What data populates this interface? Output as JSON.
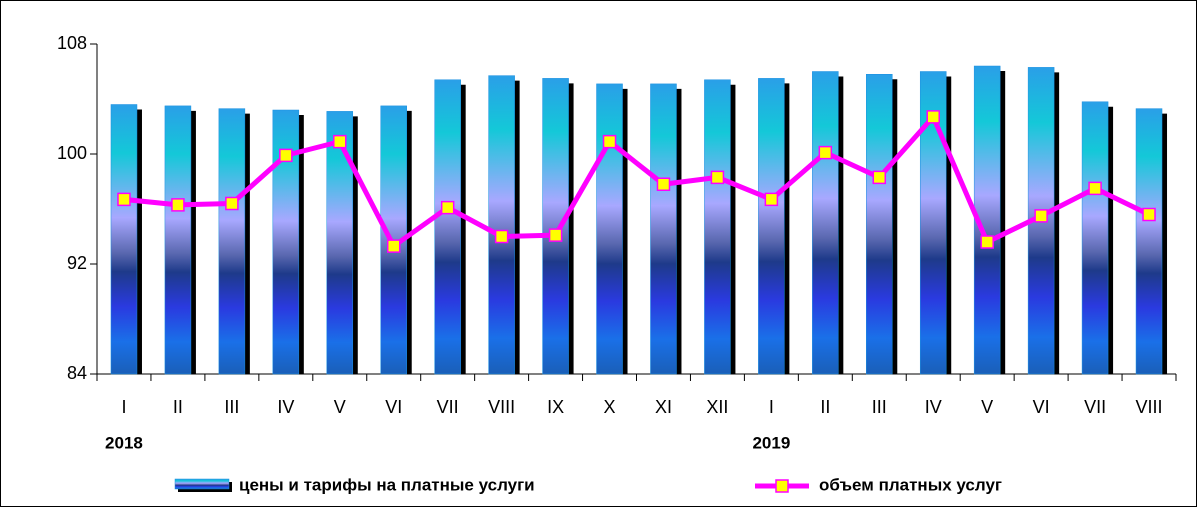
{
  "chart_data": {
    "type": "bar_line",
    "categories": [
      "I",
      "II",
      "III",
      "IV",
      "V",
      "VI",
      "VII",
      "VIII",
      "IX",
      "X",
      "XI",
      "XII",
      "I",
      "II",
      "III",
      "IV",
      "V",
      "VI",
      "VII",
      "VIII"
    ],
    "year_labels": [
      "2018",
      "2019"
    ],
    "series": [
      {
        "name": "цены и тарифы на платные услуги",
        "type": "bar",
        "color": "#1a8fe0",
        "values": [
          103.6,
          103.5,
          103.3,
          103.2,
          103.1,
          103.5,
          105.4,
          105.7,
          105.5,
          105.1,
          105.1,
          105.4,
          105.5,
          106.0,
          105.8,
          106.0,
          106.4,
          106.3,
          103.8,
          103.3
        ]
      },
      {
        "name": "объем платных услуг",
        "type": "line",
        "color": "#ff00ff",
        "marker_color": "#ffff00",
        "values": [
          96.7,
          96.3,
          96.4,
          99.9,
          100.9,
          93.3,
          96.1,
          94.0,
          94.1,
          100.9,
          97.8,
          98.3,
          96.7,
          100.1,
          98.3,
          102.7,
          93.6,
          95.5,
          97.5,
          95.6
        ]
      }
    ],
    "ylim": [
      84,
      108
    ],
    "yticks": [
      84,
      92,
      100,
      108
    ],
    "grid": false
  }
}
